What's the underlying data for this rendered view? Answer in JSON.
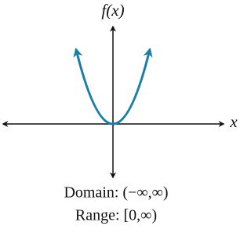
{
  "axes": {
    "y_label": "f(x)",
    "x_label": "x"
  },
  "domain": "Domain: (−∞,∞)",
  "range": "Range: [0,∞)"
}
